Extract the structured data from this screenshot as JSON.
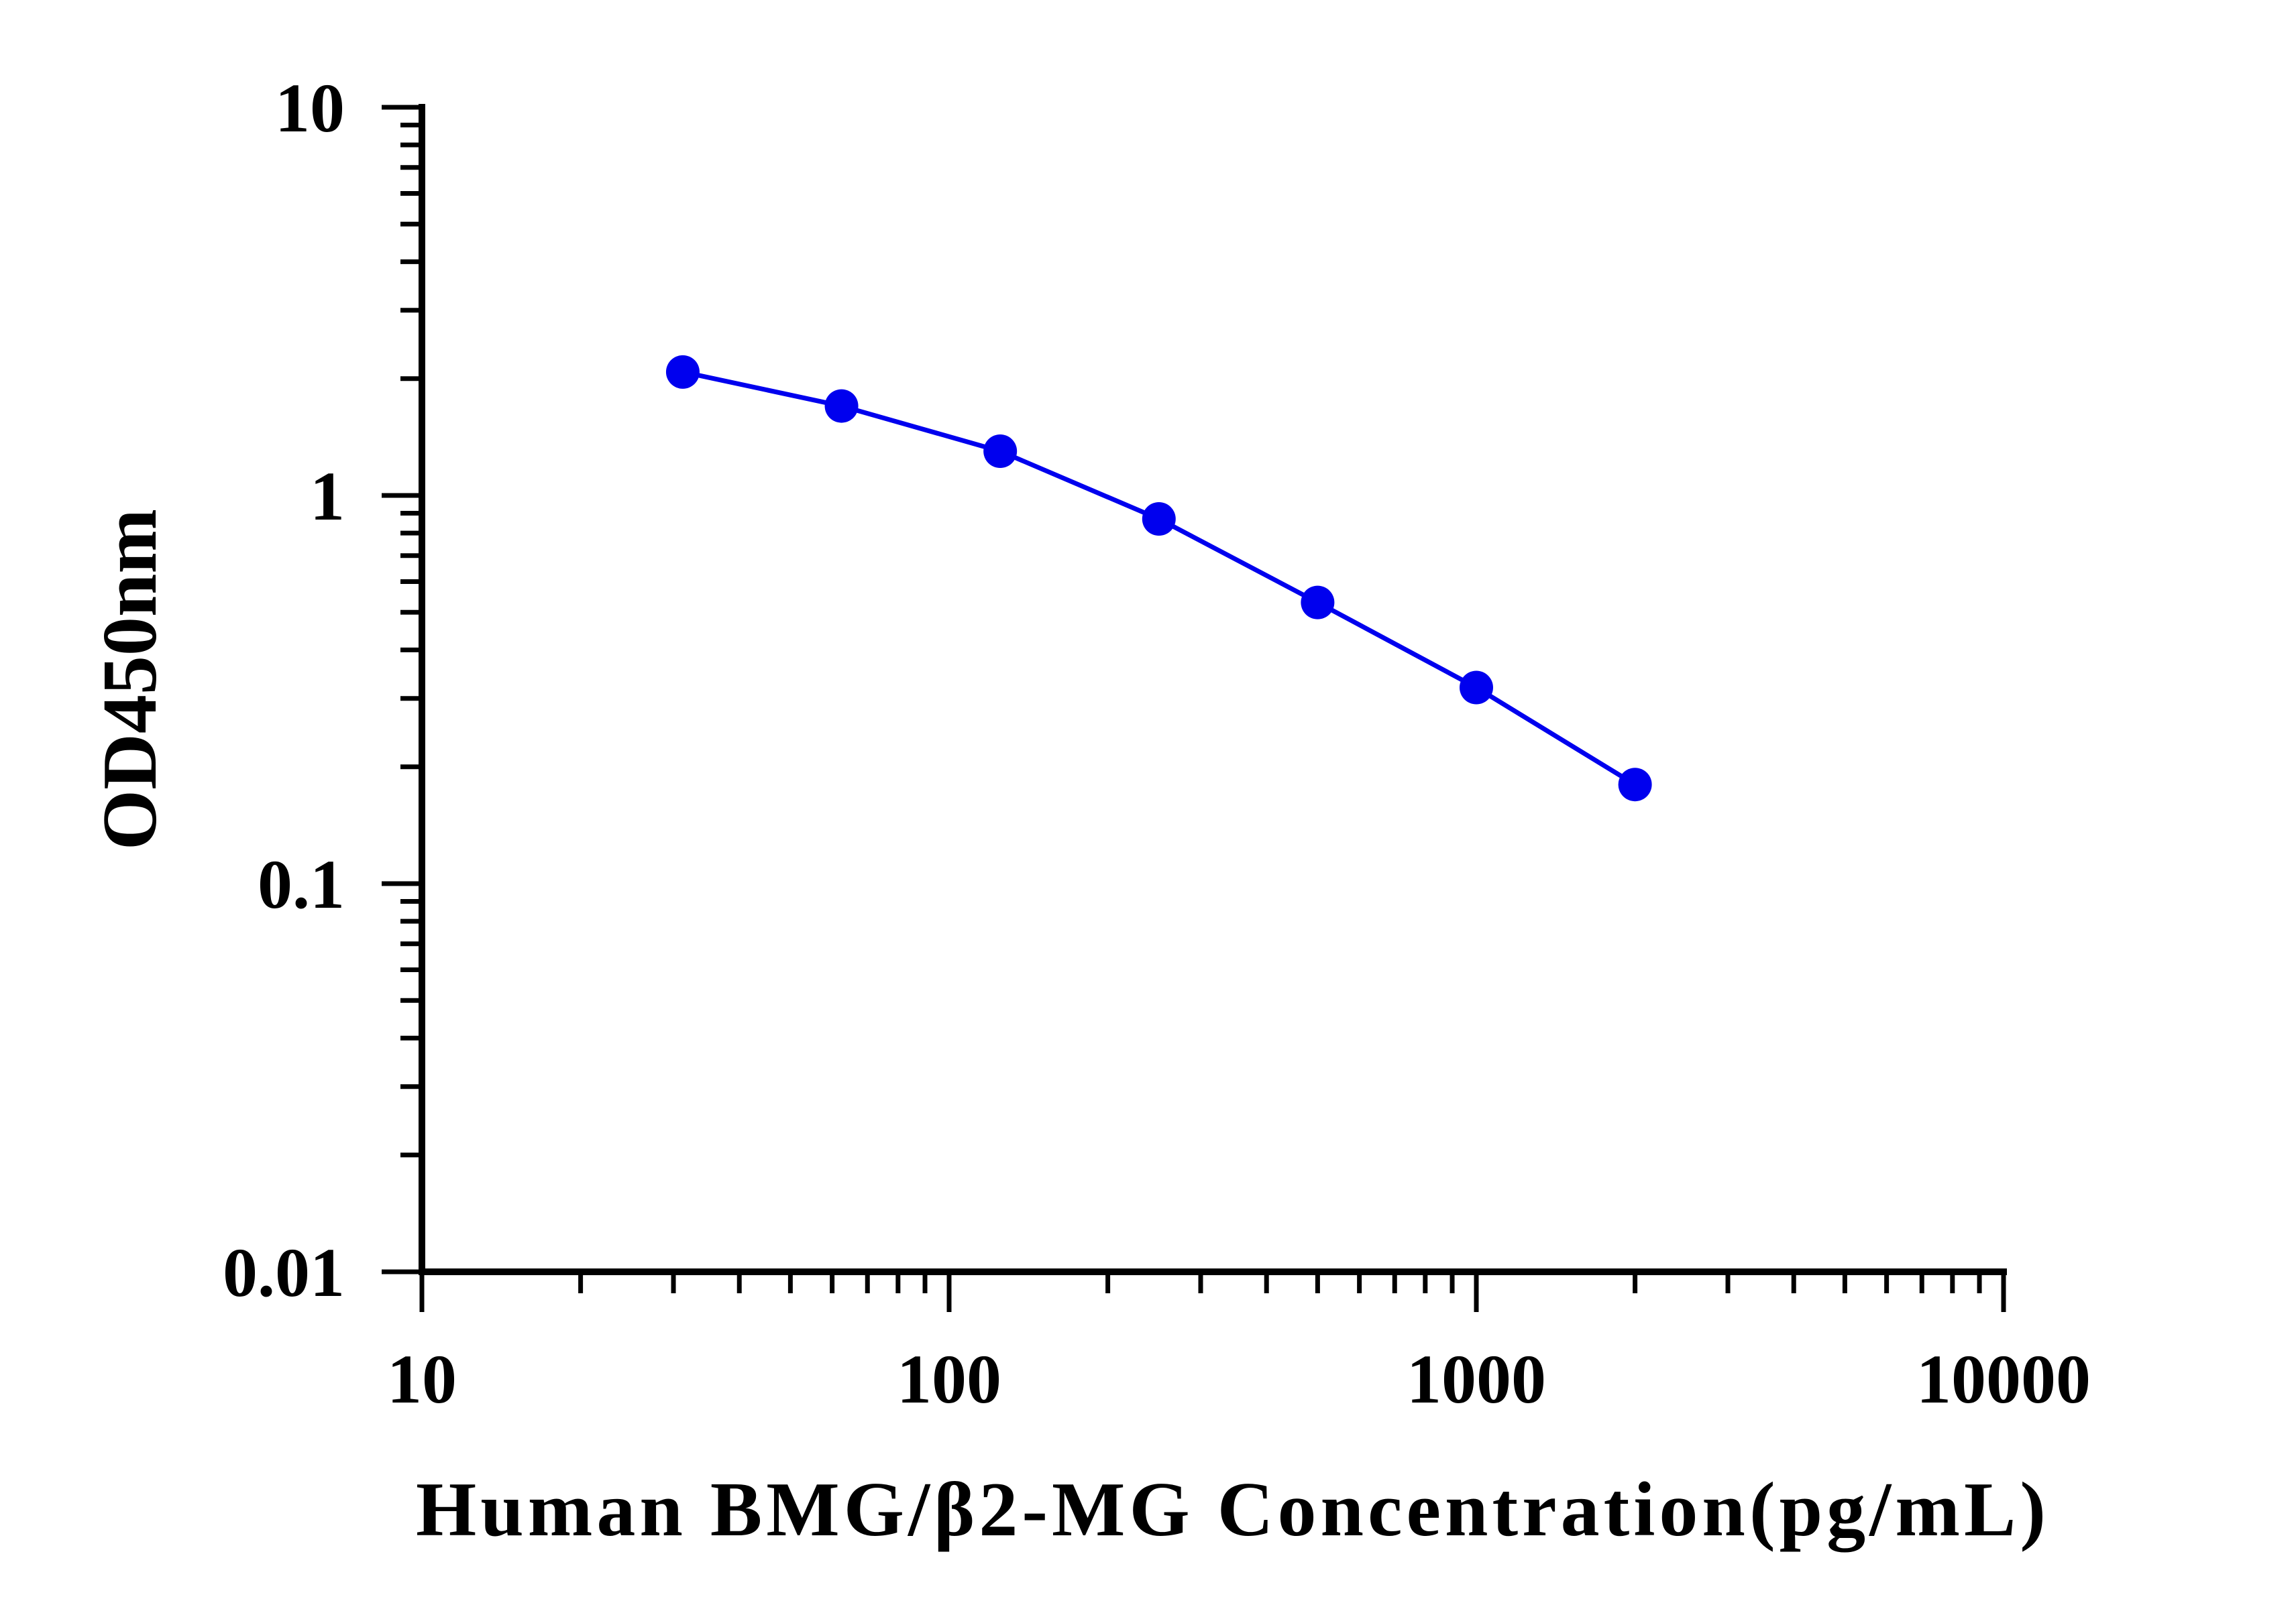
{
  "colors": {
    "series": "#0000ee",
    "axis": "#000000",
    "background": "#ffffff"
  },
  "chart_data": {
    "type": "line",
    "title": "",
    "xlabel": "Human BMG/β2-MG Concentration(pg/mL)",
    "ylabel": "OD450nm",
    "xscale": "log",
    "yscale": "log",
    "xlim": [
      10,
      10000
    ],
    "ylim": [
      0.01,
      10
    ],
    "xticks": [
      10,
      100,
      1000,
      10000
    ],
    "xtick_labels": [
      "10",
      "100",
      "1000",
      "10000"
    ],
    "yticks": [
      0.01,
      0.1,
      1,
      10
    ],
    "ytick_labels": [
      "0.01",
      "0.1",
      "1",
      "10"
    ],
    "grid": false,
    "legend": "none",
    "x": [
      31.25,
      62.5,
      125,
      250,
      500,
      1000,
      2000
    ],
    "series": [
      {
        "values": [
          2.08,
          1.7,
          1.3,
          0.87,
          0.53,
          0.32,
          0.18
        ],
        "marker": "circle"
      }
    ]
  }
}
